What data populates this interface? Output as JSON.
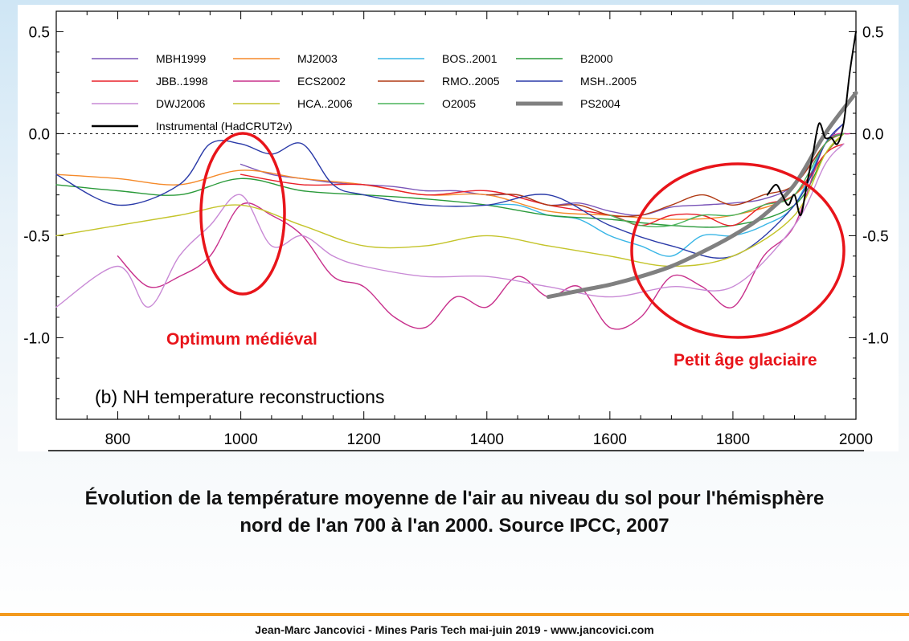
{
  "chart_data": {
    "type": "line",
    "panel_title": "(b) NH temperature reconstructions",
    "xlim": [
      700,
      2000
    ],
    "ylim": [
      -1.4,
      0.6
    ],
    "x_ticks": [
      800,
      1000,
      1200,
      1400,
      1600,
      1800,
      2000
    ],
    "x_tick_labels": [
      "800",
      "1000",
      "1200",
      "1400",
      "1600",
      "1800",
      "2000"
    ],
    "y_ticks": [
      0.5,
      0.0,
      -0.5,
      -1.0
    ],
    "y_tick_labels": [
      "0.5",
      "0.0",
      "-0.5",
      "-1.0"
    ],
    "zero_line": "dotted",
    "legend_placement": "top-left",
    "series": [
      {
        "name": "MBH1999",
        "color": "#7a55b8",
        "x": [
          1000,
          1050,
          1100,
          1150,
          1200,
          1250,
          1300,
          1350,
          1400,
          1450,
          1500,
          1550,
          1600,
          1650,
          1700,
          1750,
          1800,
          1850,
          1900,
          1950,
          1980
        ],
        "y": [
          -0.15,
          -0.2,
          -0.22,
          -0.24,
          -0.25,
          -0.26,
          -0.28,
          -0.28,
          -0.3,
          -0.3,
          -0.35,
          -0.34,
          -0.38,
          -0.4,
          -0.36,
          -0.35,
          -0.34,
          -0.32,
          -0.25,
          -0.05,
          0.05
        ]
      },
      {
        "name": "MJ2003",
        "color": "#f58a2a",
        "x": [
          700,
          800,
          900,
          1000,
          1100,
          1200,
          1300,
          1400,
          1500,
          1600,
          1700,
          1800,
          1900,
          1950,
          1980
        ],
        "y": [
          -0.2,
          -0.22,
          -0.25,
          -0.18,
          -0.22,
          -0.25,
          -0.3,
          -0.3,
          -0.38,
          -0.4,
          -0.42,
          -0.4,
          -0.3,
          -0.1,
          0.0
        ]
      },
      {
        "name": "BOS..2001",
        "color": "#39b6e6",
        "x": [
          1400,
          1450,
          1500,
          1550,
          1600,
          1650,
          1700,
          1750,
          1800,
          1850,
          1900,
          1950,
          1980
        ],
        "y": [
          -0.35,
          -0.35,
          -0.4,
          -0.42,
          -0.5,
          -0.55,
          -0.6,
          -0.5,
          -0.5,
          -0.45,
          -0.35,
          -0.05,
          0.0
        ]
      },
      {
        "name": "B2000",
        "color": "#2a9a3a",
        "x": [
          700,
          800,
          900,
          1000,
          1100,
          1200,
          1300,
          1400,
          1500,
          1600,
          1700,
          1800,
          1900,
          1950,
          1980
        ],
        "y": [
          -0.25,
          -0.28,
          -0.3,
          -0.22,
          -0.28,
          -0.3,
          -0.32,
          -0.35,
          -0.4,
          -0.42,
          -0.45,
          -0.45,
          -0.35,
          -0.1,
          0.0
        ]
      },
      {
        "name": "JBB..1998",
        "color": "#e8202a",
        "x": [
          1000,
          1100,
          1200,
          1300,
          1400,
          1500,
          1600,
          1650,
          1700,
          1750,
          1800,
          1850,
          1900,
          1950,
          1980
        ],
        "y": [
          -0.2,
          -0.25,
          -0.25,
          -0.3,
          -0.28,
          -0.35,
          -0.4,
          -0.45,
          -0.4,
          -0.4,
          -0.45,
          -0.35,
          -0.3,
          -0.1,
          -0.05
        ]
      },
      {
        "name": "ECS2002",
        "color": "#c8308c",
        "x": [
          800,
          850,
          900,
          950,
          1000,
          1050,
          1100,
          1150,
          1200,
          1250,
          1300,
          1350,
          1400,
          1450,
          1500,
          1550,
          1600,
          1650,
          1700,
          1750,
          1800,
          1850,
          1900,
          1950,
          1990
        ],
        "y": [
          -0.6,
          -0.75,
          -0.7,
          -0.6,
          -0.35,
          -0.4,
          -0.5,
          -0.7,
          -0.75,
          -0.9,
          -0.95,
          -0.8,
          -0.85,
          -0.7,
          -0.8,
          -0.75,
          -0.95,
          -0.9,
          -0.7,
          -0.75,
          -0.85,
          -0.6,
          -0.45,
          -0.05,
          0.0
        ]
      },
      {
        "name": "RMO..2005",
        "color": "#b03a14",
        "x": [
          1400,
          1450,
          1500,
          1550,
          1600,
          1650,
          1700,
          1750,
          1800,
          1850,
          1900,
          1950,
          1980
        ],
        "y": [
          -0.3,
          -0.3,
          -0.35,
          -0.35,
          -0.4,
          -0.4,
          -0.35,
          -0.3,
          -0.35,
          -0.3,
          -0.25,
          -0.05,
          0.0
        ]
      },
      {
        "name": "MSH..2005",
        "color": "#2a3aa8",
        "x": [
          700,
          800,
          900,
          950,
          1000,
          1050,
          1100,
          1150,
          1200,
          1300,
          1400,
          1500,
          1600,
          1700,
          1800,
          1900,
          1950,
          1980
        ],
        "y": [
          -0.2,
          -0.35,
          -0.25,
          -0.05,
          -0.05,
          -0.1,
          -0.05,
          -0.25,
          -0.3,
          -0.35,
          -0.35,
          -0.3,
          -0.45,
          -0.55,
          -0.6,
          -0.35,
          -0.05,
          0.05
        ]
      },
      {
        "name": "DWJ2006",
        "color": "#c98ad6",
        "x": [
          700,
          800,
          850,
          900,
          950,
          1000,
          1050,
          1100,
          1150,
          1200,
          1300,
          1400,
          1500,
          1600,
          1700,
          1800,
          1900,
          1950,
          1980
        ],
        "y": [
          -0.85,
          -0.65,
          -0.85,
          -0.6,
          -0.45,
          -0.3,
          -0.55,
          -0.5,
          -0.6,
          -0.65,
          -0.7,
          -0.7,
          -0.75,
          -0.8,
          -0.75,
          -0.75,
          -0.45,
          -0.15,
          -0.05
        ]
      },
      {
        "name": "HCA..2006",
        "color": "#c4c42a",
        "x": [
          700,
          800,
          900,
          1000,
          1100,
          1200,
          1300,
          1400,
          1500,
          1600,
          1700,
          1800,
          1900,
          1950,
          1980
        ],
        "y": [
          -0.5,
          -0.45,
          -0.4,
          -0.35,
          -0.45,
          -0.55,
          -0.55,
          -0.5,
          -0.55,
          -0.6,
          -0.65,
          -0.6,
          -0.4,
          -0.1,
          0.0
        ]
      },
      {
        "name": "O2005",
        "color": "#4ab35a",
        "x": [
          1600,
          1650,
          1700,
          1750,
          1800,
          1850,
          1900,
          1950,
          1980
        ],
        "y": [
          -0.4,
          -0.45,
          -0.45,
          -0.4,
          -0.4,
          -0.35,
          -0.3,
          -0.05,
          0.0
        ]
      },
      {
        "name": "PS2004",
        "color": "#808080",
        "x": [
          1500,
          1550,
          1600,
          1650,
          1700,
          1750,
          1800,
          1850,
          1900,
          1950,
          2000
        ],
        "y": [
          -0.8,
          -0.77,
          -0.74,
          -0.7,
          -0.65,
          -0.58,
          -0.5,
          -0.4,
          -0.25,
          0.0,
          0.2
        ]
      },
      {
        "name": "Instrumental (HadCRUT2v)",
        "color": "#000000",
        "x": [
          1856,
          1870,
          1880,
          1890,
          1900,
          1910,
          1920,
          1930,
          1940,
          1950,
          1960,
          1970,
          1980,
          1990,
          2000
        ],
        "y": [
          -0.3,
          -0.25,
          -0.3,
          -0.35,
          -0.3,
          -0.4,
          -0.25,
          -0.1,
          0.05,
          -0.02,
          -0.02,
          -0.05,
          0.05,
          0.3,
          0.5
        ]
      }
    ],
    "annotations": [
      "Optimum médiéval",
      "Petit âge glaciaire"
    ]
  },
  "caption": {
    "line1": "Évolution de la température moyenne de l'air au niveau du sol pour l'hémisphère",
    "line2": "nord de l'an 700 à l'an 2000. Source IPCC, 2007"
  },
  "footer": "Jean-Marc Jancovici - Mines Paris Tech mai-juin 2019 - www.jancovici.com",
  "colors": {
    "accent": "#f39a1e",
    "annotation_red": "#e8141a"
  }
}
